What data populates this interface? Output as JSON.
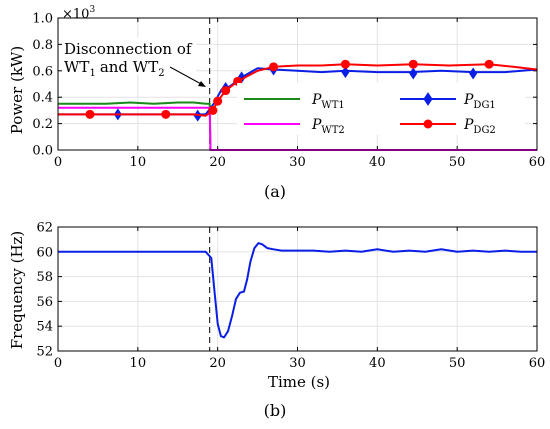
{
  "chart_data": [
    {
      "type": "line",
      "caption": "(a)",
      "ylabel": "Power (kW)",
      "xlim": [
        0,
        60
      ],
      "ylim": [
        0,
        1.0
      ],
      "xticks": [
        "0",
        "10",
        "20",
        "30",
        "40",
        "50",
        "60"
      ],
      "yticks": [
        "0.0",
        "0.2",
        "0.4",
        "0.6",
        "0.8",
        "1.0"
      ],
      "multiplier": "×10",
      "multiplier_exp": "3",
      "grid": true,
      "annotation": {
        "line1": "Disconnection of",
        "wt": "WT",
        "sub1": "1",
        "and": "and WT",
        "sub2": "2",
        "x": 19
      },
      "legend": {
        "placement": "center"
      },
      "series": [
        {
          "name": "P",
          "subscript": "WT1",
          "color": "#1a8a1a",
          "marker": "none",
          "x": [
            0,
            3,
            6,
            9,
            12,
            15,
            17,
            18.5,
            19,
            19.1,
            60
          ],
          "y": [
            0.35,
            0.35,
            0.35,
            0.36,
            0.35,
            0.36,
            0.36,
            0.35,
            0.35,
            0.0,
            0.0
          ]
        },
        {
          "name": "P",
          "subscript": "WT2",
          "color": "#ff00ff",
          "marker": "none",
          "x": [
            0,
            3,
            6,
            9,
            12,
            15,
            17,
            18.5,
            19,
            19.1,
            60
          ],
          "y": [
            0.32,
            0.32,
            0.32,
            0.32,
            0.32,
            0.32,
            0.32,
            0.32,
            0.32,
            0.0,
            0.0
          ]
        },
        {
          "name": "P",
          "subscript": "DG1",
          "color": "#0a1ee6",
          "marker": "diamond",
          "x": [
            0,
            4,
            7.5,
            10,
            14,
            17,
            18.5,
            19.5,
            20.5,
            21.5,
            23,
            25,
            27,
            30,
            33,
            36,
            40,
            44,
            48,
            52,
            56,
            60
          ],
          "y": [
            0.27,
            0.27,
            0.27,
            0.27,
            0.27,
            0.27,
            0.27,
            0.35,
            0.46,
            0.48,
            0.55,
            0.62,
            0.61,
            0.6,
            0.59,
            0.6,
            0.59,
            0.59,
            0.6,
            0.59,
            0.59,
            0.61
          ],
          "markers_x": [
            7.5,
            17.5,
            21,
            23,
            27,
            36,
            44.5,
            52
          ],
          "markers_y": [
            0.27,
            0.26,
            0.47,
            0.55,
            0.61,
            0.59,
            0.58,
            0.58
          ]
        },
        {
          "name": "P",
          "subscript": "DG2",
          "color": "#ff0000",
          "marker": "circle",
          "x": [
            0,
            4,
            7,
            10,
            13.5,
            17,
            18.5,
            19.4,
            20,
            21,
            22.5,
            25,
            27,
            30,
            33,
            36,
            40,
            44.5,
            49,
            54,
            57,
            60
          ],
          "y": [
            0.27,
            0.27,
            0.27,
            0.27,
            0.27,
            0.27,
            0.26,
            0.3,
            0.37,
            0.45,
            0.52,
            0.6,
            0.63,
            0.64,
            0.64,
            0.65,
            0.64,
            0.65,
            0.64,
            0.65,
            0.63,
            0.61
          ],
          "markers_x": [
            4,
            13.5,
            19.4,
            20,
            21,
            22.5,
            27,
            36,
            44.5,
            54
          ],
          "markers_y": [
            0.27,
            0.27,
            0.3,
            0.37,
            0.45,
            0.52,
            0.63,
            0.65,
            0.65,
            0.65
          ]
        }
      ]
    },
    {
      "type": "line",
      "caption": "(b)",
      "xlabel": "Time (s)",
      "ylabel": "Frequency (Hz)",
      "xlim": [
        0,
        60
      ],
      "ylim": [
        52,
        62
      ],
      "xticks": [
        "0",
        "10",
        "20",
        "30",
        "40",
        "50",
        "60"
      ],
      "yticks": [
        "52",
        "54",
        "56",
        "58",
        "60",
        "62"
      ],
      "grid": true,
      "event_x": 19,
      "series": [
        {
          "name": "",
          "color": "#0a1ee6",
          "x": [
            0,
            5,
            10,
            15,
            18.5,
            19.2,
            19.6,
            20,
            20.4,
            20.8,
            21.3,
            21.8,
            22.3,
            22.8,
            23.3,
            23.7,
            24.1,
            24.6,
            25.1,
            25.6,
            26.2,
            27,
            28,
            30,
            32,
            34,
            36,
            38,
            40,
            42,
            44,
            46,
            48,
            50,
            52,
            54,
            56,
            58,
            60
          ],
          "y": [
            60,
            60,
            60,
            60,
            60,
            59.5,
            56.8,
            54.2,
            53.2,
            53.1,
            53.6,
            54.8,
            56.2,
            56.7,
            56.8,
            57.8,
            59.2,
            60.3,
            60.7,
            60.6,
            60.3,
            60.2,
            60.1,
            60.1,
            60.1,
            60.0,
            60.1,
            60.0,
            60.2,
            60.0,
            60.1,
            60.0,
            60.2,
            60.0,
            60.1,
            60.0,
            60.1,
            60.0,
            60.0
          ]
        }
      ]
    }
  ]
}
